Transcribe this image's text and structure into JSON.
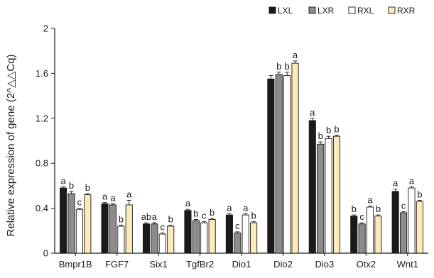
{
  "chart_data": {
    "type": "bar",
    "ylabel": "Relative expression of gene (2^△△Cq)",
    "ylim": [
      0,
      2
    ],
    "yticks": [
      "0",
      "0.4",
      "0.8",
      "1.2",
      "1.6",
      "2"
    ],
    "ytick_values": [
      0,
      0.4,
      0.8,
      1.2,
      1.6,
      2
    ],
    "legend_position": "top-right",
    "categories": [
      "Bmpr1B",
      "FGF7",
      "Six1",
      "TgfBr2",
      "Dio1",
      "Dio2",
      "Dio3",
      "Otx2",
      "Wnt1"
    ],
    "series": [
      {
        "name": "LXL",
        "color": "#1a1a1a",
        "values": [
          0.58,
          0.44,
          0.26,
          0.38,
          0.34,
          1.55,
          1.18,
          0.33,
          0.55
        ],
        "errors": [
          0.01,
          0.01,
          0.01,
          0.01,
          0.01,
          0.03,
          0.02,
          0.01,
          0.02
        ],
        "labels": [
          "a",
          "a",
          "ab",
          "a",
          "a",
          "",
          "a",
          "b",
          "a"
        ]
      },
      {
        "name": "LXR",
        "color": "#8c8c8c",
        "values": [
          0.53,
          0.43,
          0.26,
          0.29,
          0.18,
          1.59,
          0.97,
          0.26,
          0.36
        ],
        "errors": [
          0.02,
          0.01,
          0.01,
          0.01,
          0.01,
          0.02,
          0.02,
          0.01,
          0.01
        ],
        "labels": [
          "b",
          "a",
          "a",
          "b",
          "c",
          "b",
          "b",
          "c",
          "c"
        ]
      },
      {
        "name": "RXL",
        "color": "#ffffff",
        "values": [
          0.39,
          0.24,
          0.17,
          0.27,
          0.34,
          1.58,
          1.02,
          0.41,
          0.58
        ],
        "errors": [
          0.01,
          0.01,
          0.01,
          0.01,
          0.01,
          0.03,
          0.02,
          0.01,
          0.01
        ],
        "labels": [
          "c",
          "b",
          "c",
          "c",
          "a",
          "b",
          "b",
          "a",
          "a"
        ]
      },
      {
        "name": "RXR",
        "color": "#fde9b9",
        "values": [
          0.52,
          0.43,
          0.24,
          0.3,
          0.27,
          1.69,
          1.04,
          0.33,
          0.46
        ],
        "errors": [
          0.01,
          0.04,
          0.01,
          0.01,
          0.01,
          0.02,
          0.01,
          0.01,
          0.01
        ],
        "labels": [
          "b",
          "a",
          "b",
          "b",
          "b",
          "a",
          "b",
          "b",
          "b"
        ]
      }
    ]
  }
}
